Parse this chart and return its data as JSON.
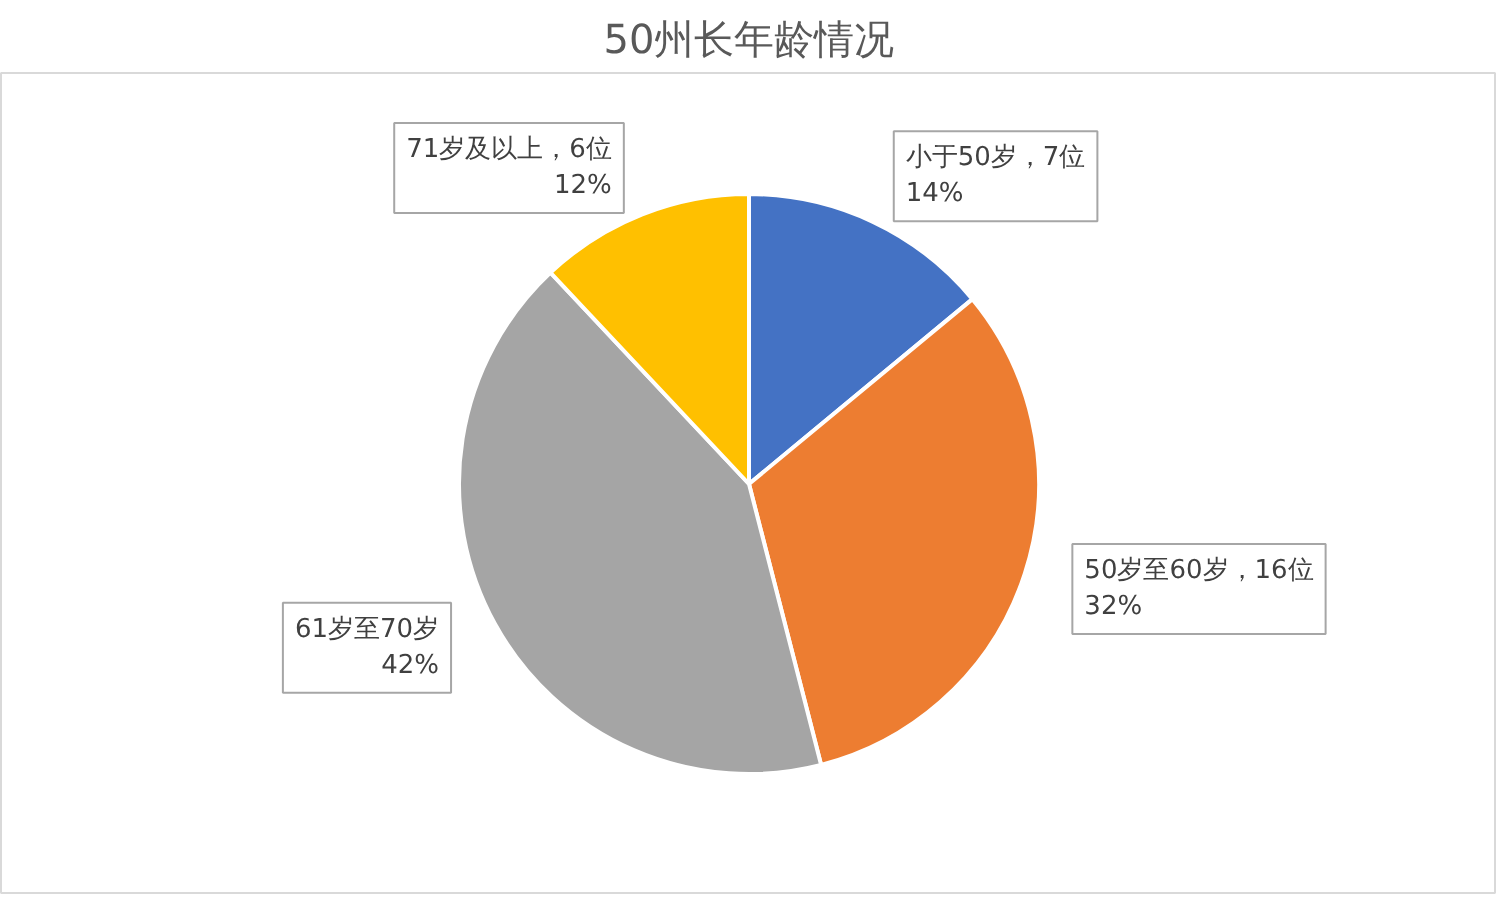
{
  "chart_data": {
    "type": "pie",
    "title": "50州长年龄情况",
    "categories": [
      "小于50岁，7位",
      "50岁至60岁，16位",
      "61岁至70岁",
      "71岁及以上，6位"
    ],
    "values": [
      14,
      32,
      42,
      12
    ],
    "value_labels": [
      "14%",
      "32%",
      "42%",
      "12%"
    ],
    "colors": [
      "#4472c4",
      "#ed7d31",
      "#a5a5a5",
      "#ffc000"
    ]
  }
}
